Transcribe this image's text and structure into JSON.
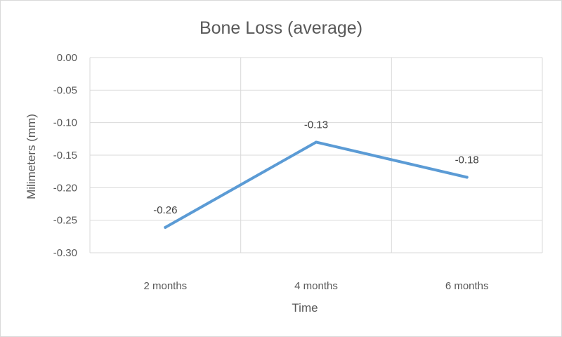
{
  "chart_data": {
    "type": "line",
    "title": "Bone Loss (average)",
    "xlabel": "Time",
    "ylabel": "Milimeters (mm)",
    "categories": [
      "2 months",
      "4 months",
      "6 months"
    ],
    "series": [
      {
        "values": [
          -0.261,
          -0.13,
          -0.184
        ],
        "color": "#5b9bd5"
      }
    ],
    "data_labels": [
      "-0.26",
      "-0.13",
      "-0.18"
    ],
    "ylim": [
      -0.3,
      0.0
    ],
    "yticks": [
      0.0,
      -0.05,
      -0.1,
      -0.15,
      -0.2,
      -0.25,
      -0.3
    ],
    "ytick_labels": [
      "0.00",
      "-0.05",
      "-0.10",
      "-0.15",
      "-0.20",
      "-0.25",
      "-0.30"
    ],
    "grid": true,
    "legend": "none"
  }
}
